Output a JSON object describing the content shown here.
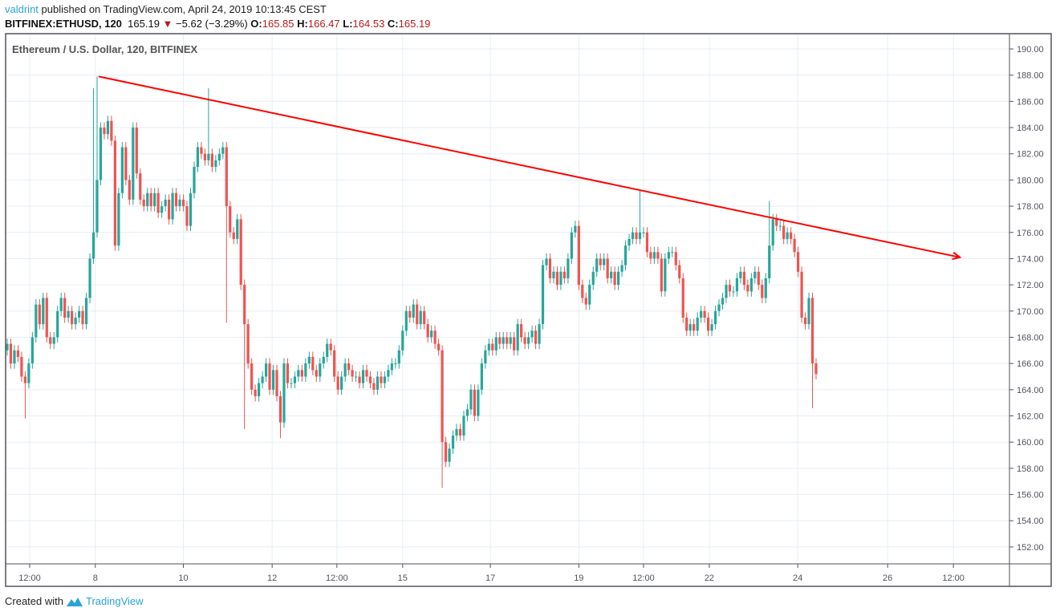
{
  "header": {
    "author": "valdrint",
    "published_text": "published on TradingView.com, April 24, 2019 10:13:45 CEST",
    "symbol": "BITFINEX:ETHUSD, 120",
    "last_price": "165.19",
    "change": "−5.62 (−3.29%)",
    "change_direction_icon": "triangle-down-icon",
    "o_label": "O:",
    "o": "165.85",
    "h_label": "H:",
    "h": "166.47",
    "l_label": "L:",
    "l": "164.53",
    "c_label": "C:",
    "c": "165.19"
  },
  "footer": {
    "created_with": "Created with",
    "brand": "TradingView"
  },
  "colors": {
    "up": "#26a69a",
    "down": "#ef5350",
    "trendline": "#ff0000",
    "grid": "#e6eef4",
    "accent": "#2aa3d6"
  },
  "chart_data": {
    "type": "candlestick",
    "title": "Ethereum / U.S. Dollar, 120, BITFINEX",
    "interval_minutes": 120,
    "ylim": [
      151,
      191
    ],
    "y_ticks": [
      "190.00",
      "188.00",
      "186.00",
      "184.00",
      "182.00",
      "180.00",
      "178.00",
      "176.00",
      "174.00",
      "172.00",
      "170.00",
      "168.00",
      "166.00",
      "164.00",
      "162.00",
      "160.00",
      "158.00",
      "156.00",
      "154.00",
      "152.00"
    ],
    "x_ticks": [
      {
        "label": "12:00",
        "bar": 6.25
      },
      {
        "label": "8",
        "bar": 24.5
      },
      {
        "label": "10",
        "bar": 49
      },
      {
        "label": "12",
        "bar": 73.7
      },
      {
        "label": "12:00",
        "bar": 91.7
      },
      {
        "label": "15",
        "bar": 110
      },
      {
        "label": "17",
        "bar": 134.4
      },
      {
        "label": "19",
        "bar": 159
      },
      {
        "label": "12:00",
        "bar": 177
      },
      {
        "label": "22",
        "bar": 195.3
      },
      {
        "label": "24",
        "bar": 219.9
      },
      {
        "label": "26",
        "bar": 244.9
      },
      {
        "label": "12:00",
        "bar": 263.2
      }
    ],
    "grid": true,
    "first_open": 167,
    "closes": [
      167.5,
      166,
      167,
      166.5,
      165,
      164.5,
      166,
      168,
      170.5,
      169,
      171,
      168,
      167.5,
      168,
      170,
      171,
      169.5,
      170,
      169,
      169.5,
      170,
      169,
      171,
      174,
      176,
      180,
      184,
      183.5,
      184.5,
      183,
      175,
      179,
      182.5,
      180,
      178.5,
      184,
      180.5,
      178.5,
      178,
      179,
      178,
      179,
      177.5,
      178,
      178.5,
      177,
      179,
      178,
      178.5,
      178,
      176.5,
      179,
      181,
      182.5,
      182,
      181.5,
      182,
      181,
      181.5,
      182,
      182.5,
      178,
      176,
      175.5,
      177,
      172,
      169,
      166,
      164,
      163.5,
      164.5,
      165,
      166,
      164,
      165.5,
      163.5,
      161.5,
      166,
      164.5,
      164.5,
      165,
      165.5,
      165,
      166,
      166.5,
      165.5,
      165,
      166,
      166.5,
      167.5,
      167,
      165,
      164,
      165,
      166,
      165.5,
      165,
      165,
      164.5,
      165.5,
      165,
      164.5,
      164,
      165,
      164.5,
      165,
      165.5,
      166,
      166,
      167,
      168.5,
      170,
      169.5,
      170.5,
      169,
      170,
      169,
      168,
      168.5,
      167.5,
      167,
      160,
      158.5,
      159.5,
      160.5,
      161,
      160.5,
      162,
      162.5,
      164,
      162,
      164,
      166,
      167,
      167.5,
      167,
      168,
      167.5,
      168,
      167.5,
      168,
      167,
      169,
      168,
      167.5,
      168,
      168.5,
      167.5,
      169,
      173.5,
      174,
      172.5,
      173,
      172,
      173,
      172.5,
      174,
      176,
      176.5,
      172,
      171,
      170.5,
      172,
      173,
      174,
      173.5,
      174,
      172.5,
      173,
      172,
      173,
      173.5,
      175,
      175.5,
      176,
      175.5,
      176,
      176,
      174.5,
      174,
      174.5,
      174,
      171.5,
      174,
      174.5,
      174.5,
      173.5,
      172.5,
      169.5,
      168.5,
      169,
      168.5,
      169.5,
      170,
      169.5,
      168.5,
      169,
      170,
      170.5,
      171,
      172,
      171.5,
      171.5,
      172.5,
      173,
      172,
      171.5,
      172.5,
      173,
      172,
      171,
      172.5,
      175,
      177,
      176.5,
      176.5,
      175.5,
      176,
      175.5,
      174.5,
      173,
      169.5,
      169,
      171,
      166,
      165.19
    ],
    "notable_wicks": [
      {
        "bar": 5,
        "low": 161.8
      },
      {
        "bar": 24,
        "high": 187
      },
      {
        "bar": 25,
        "high": 187.9
      },
      {
        "bar": 56,
        "high": 187
      },
      {
        "bar": 61,
        "low": 169.1
      },
      {
        "bar": 66,
        "low": 161
      },
      {
        "bar": 76,
        "low": 160.3
      },
      {
        "bar": 121,
        "low": 156.5
      },
      {
        "bar": 176,
        "high": 179.2
      },
      {
        "bar": 212,
        "high": 178.4
      },
      {
        "bar": 224,
        "low": 162.6
      }
    ],
    "trendline": {
      "from": {
        "bar": 25.4,
        "price": 187.9
      },
      "to": {
        "bar": 265,
        "price": 174.1
      },
      "arrow": true
    }
  }
}
